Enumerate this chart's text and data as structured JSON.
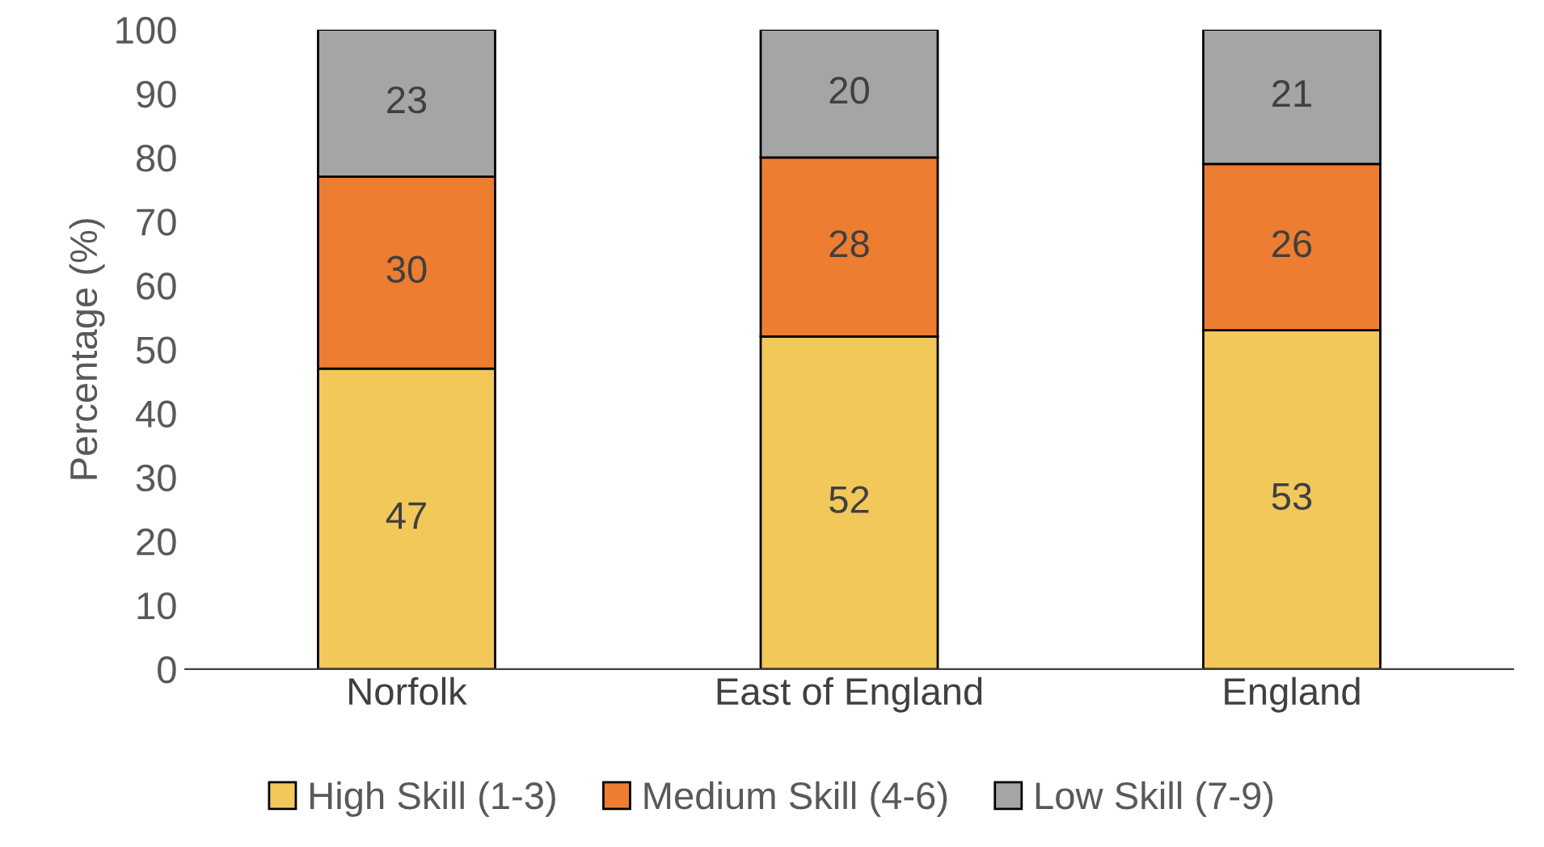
{
  "chart_data": {
    "type": "bar",
    "stacked": true,
    "ylabel": "Percentage (%)",
    "categories": [
      "Norfolk",
      "East of England",
      "England"
    ],
    "series": [
      {
        "name": "High Skill (1-3)",
        "color": "#f2c85b",
        "values": [
          47,
          52,
          53
        ]
      },
      {
        "name": "Medium Skill (4-6)",
        "color": "#ed7d31",
        "values": [
          30,
          28,
          26
        ]
      },
      {
        "name": "Low Skill (7-9)",
        "color": "#a5a5a5",
        "values": [
          23,
          20,
          21
        ]
      }
    ],
    "ylim": [
      0,
      100
    ],
    "yticks": [
      0,
      10,
      20,
      30,
      40,
      50,
      60,
      70,
      80,
      90,
      100
    ],
    "data_labels": true,
    "grid": false,
    "legend": "bottom"
  }
}
